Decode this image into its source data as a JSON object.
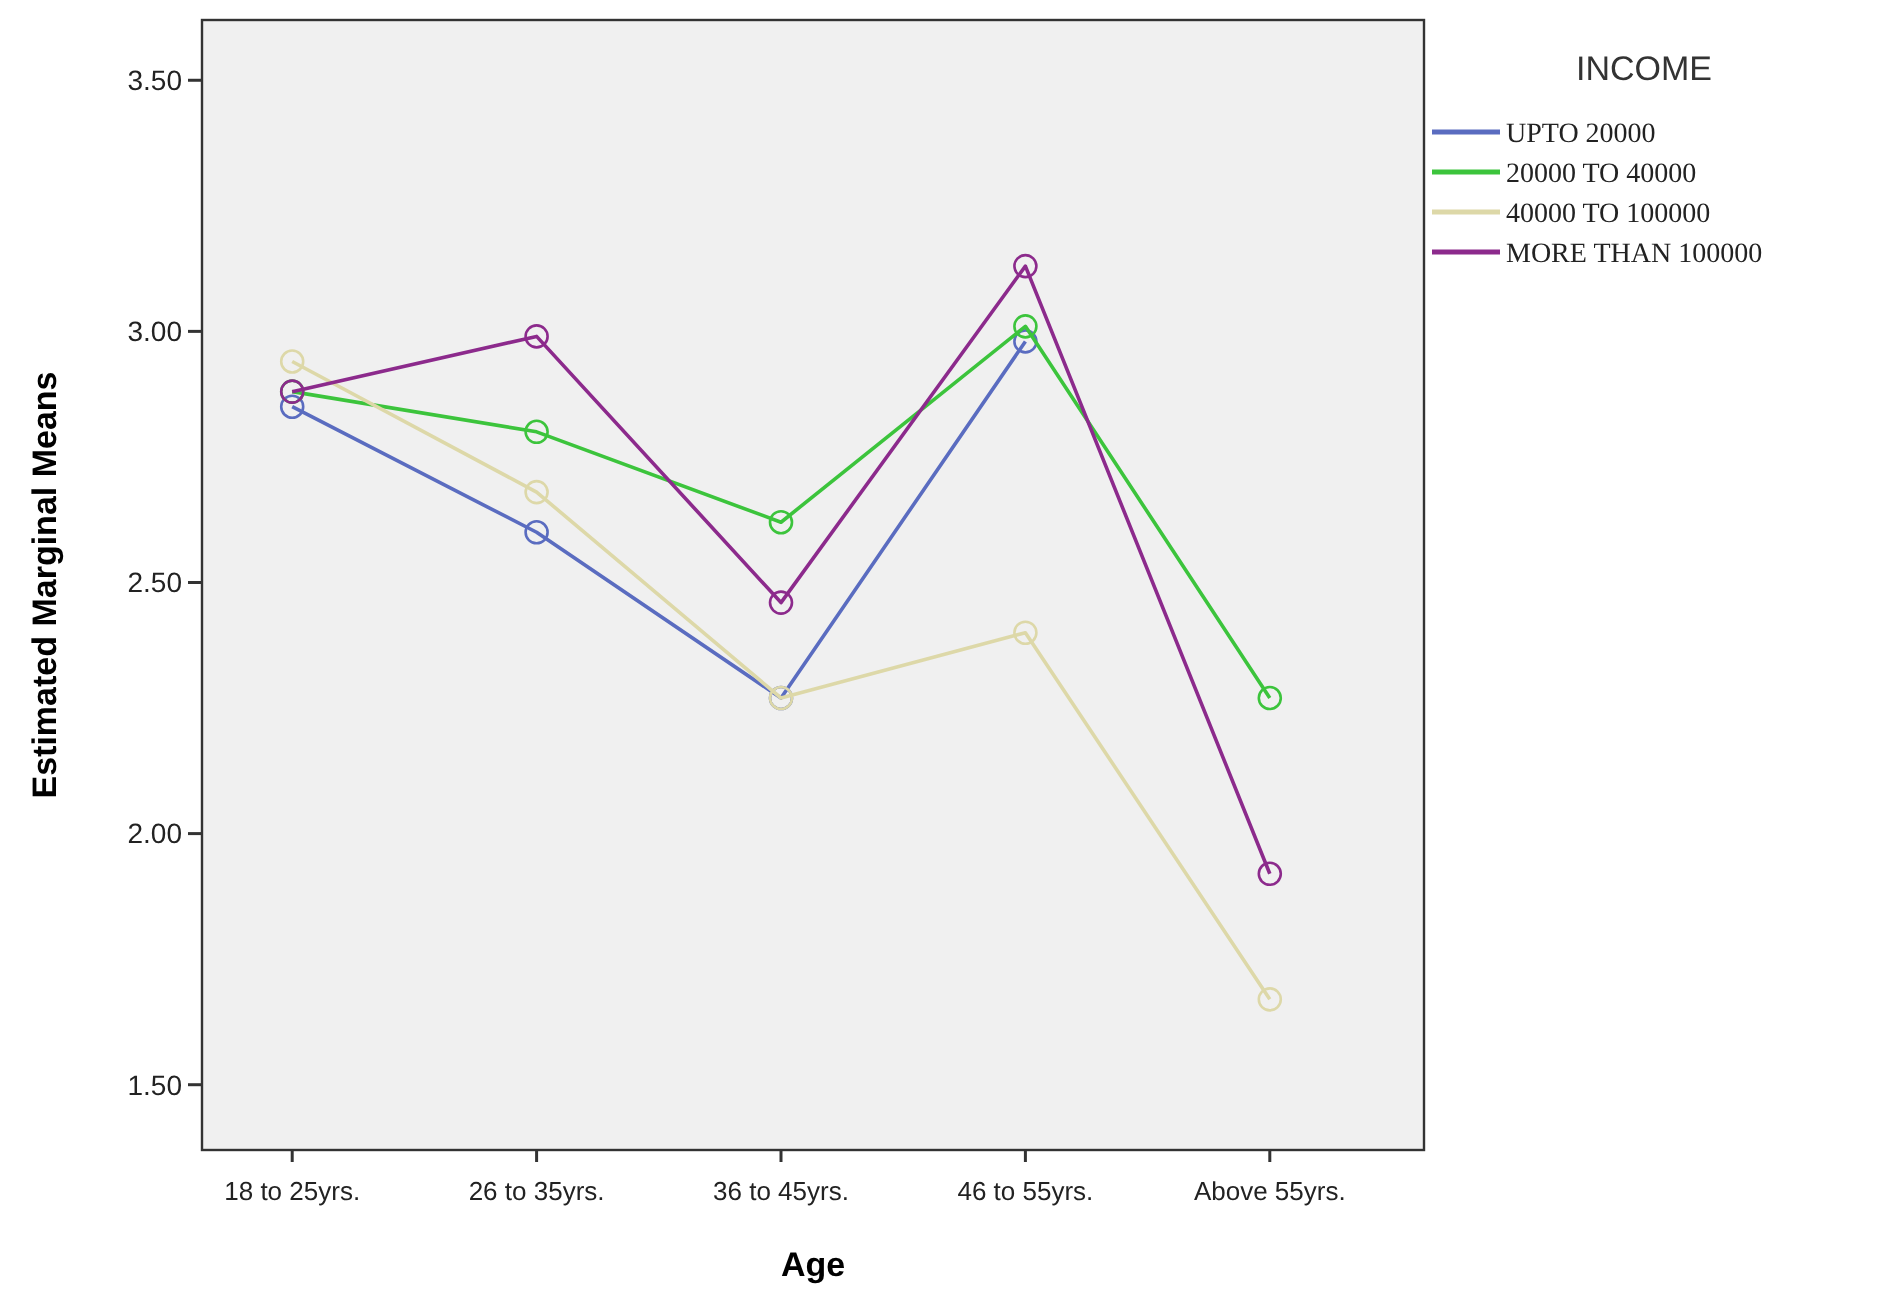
{
  "chart_data": {
    "type": "line",
    "xlabel": "Age",
    "ylabel": "Estimated Marginal Means",
    "legend_title": "INCOME",
    "legend": "right",
    "marker": "circle",
    "line_style": "solid",
    "grid": false,
    "categories": [
      "18 to 25yrs.",
      "26 to 35yrs.",
      "36 to 45yrs.",
      "46 to 55yrs.",
      "Above 55yrs."
    ],
    "ylim": [
      1.37,
      3.62
    ],
    "yticks": [
      {
        "value": 1.5,
        "label": "1.50"
      },
      {
        "value": 2,
        "label": "2.00"
      },
      {
        "value": 2.5,
        "label": "2.50"
      },
      {
        "value": 3,
        "label": "3.00"
      },
      {
        "value": 3.5,
        "label": "3.50"
      }
    ],
    "series": [
      {
        "name": "UPTO 20000",
        "color": "#5a6cc0",
        "values": [
          2.85,
          2.6,
          2.27,
          2.98,
          null
        ]
      },
      {
        "name": "20000 TO 40000",
        "color": "#3cc43c",
        "values": [
          2.88,
          2.8,
          2.62,
          3.01,
          2.27
        ]
      },
      {
        "name": "40000 TO 100000",
        "color": "#ddd8a8",
        "values": [
          2.94,
          2.68,
          2.27,
          2.4,
          1.67
        ]
      },
      {
        "name": "MORE THAN 100000",
        "color": "#8c2a8c",
        "values": [
          2.88,
          2.99,
          2.46,
          3.13,
          1.92
        ]
      }
    ]
  }
}
